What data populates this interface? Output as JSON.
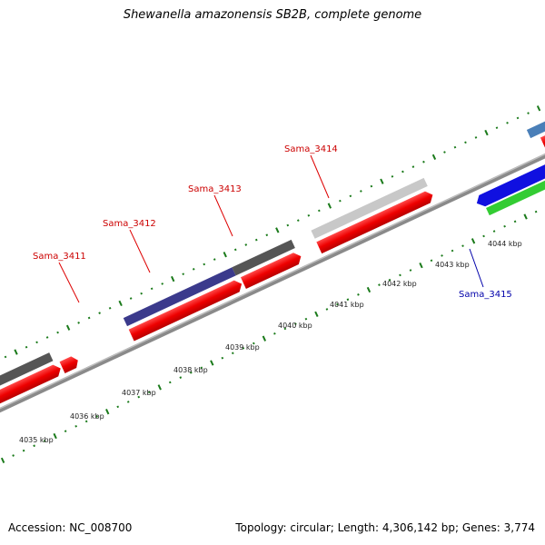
{
  "header": {
    "title": "Shewanella amazonensis SB2B, complete genome"
  },
  "footer": {
    "accession": "Accession: NC_008700",
    "topology": "Topology: circular; Length: 4,306,142 bp; Genes: 3,774"
  },
  "scale": {
    "tick_labels": [
      {
        "text": "4035 kbp"
      },
      {
        "text": "4036 kbp"
      },
      {
        "text": "4037 kbp"
      },
      {
        "text": "4038 kbp"
      },
      {
        "text": "4039 kbp"
      },
      {
        "text": "4040 kbp"
      },
      {
        "text": "4041 kbp"
      },
      {
        "text": "4042 kbp"
      },
      {
        "text": "4043 kbp"
      },
      {
        "text": "4044 kbp"
      }
    ]
  },
  "genes": [
    {
      "label": "Sama_3411",
      "color": "#cc0000"
    },
    {
      "label": "Sama_3412",
      "color": "#cc0000"
    },
    {
      "label": "Sama_3413",
      "color": "#cc0000"
    },
    {
      "label": "Sama_3414",
      "color": "#cc0000"
    },
    {
      "label": "Sama_3415",
      "color": "#0000aa"
    }
  ],
  "colors": {
    "backbone": "#8a8a8a",
    "cds": "#ee0000",
    "tick": "#1a7a1a",
    "dark_gray": "#555555",
    "purple": "#3b3a8c",
    "light_gray": "#c8c8c8",
    "blue": "#1010e0",
    "green": "#33cc33",
    "steel_blue": "#4a7fb8"
  }
}
